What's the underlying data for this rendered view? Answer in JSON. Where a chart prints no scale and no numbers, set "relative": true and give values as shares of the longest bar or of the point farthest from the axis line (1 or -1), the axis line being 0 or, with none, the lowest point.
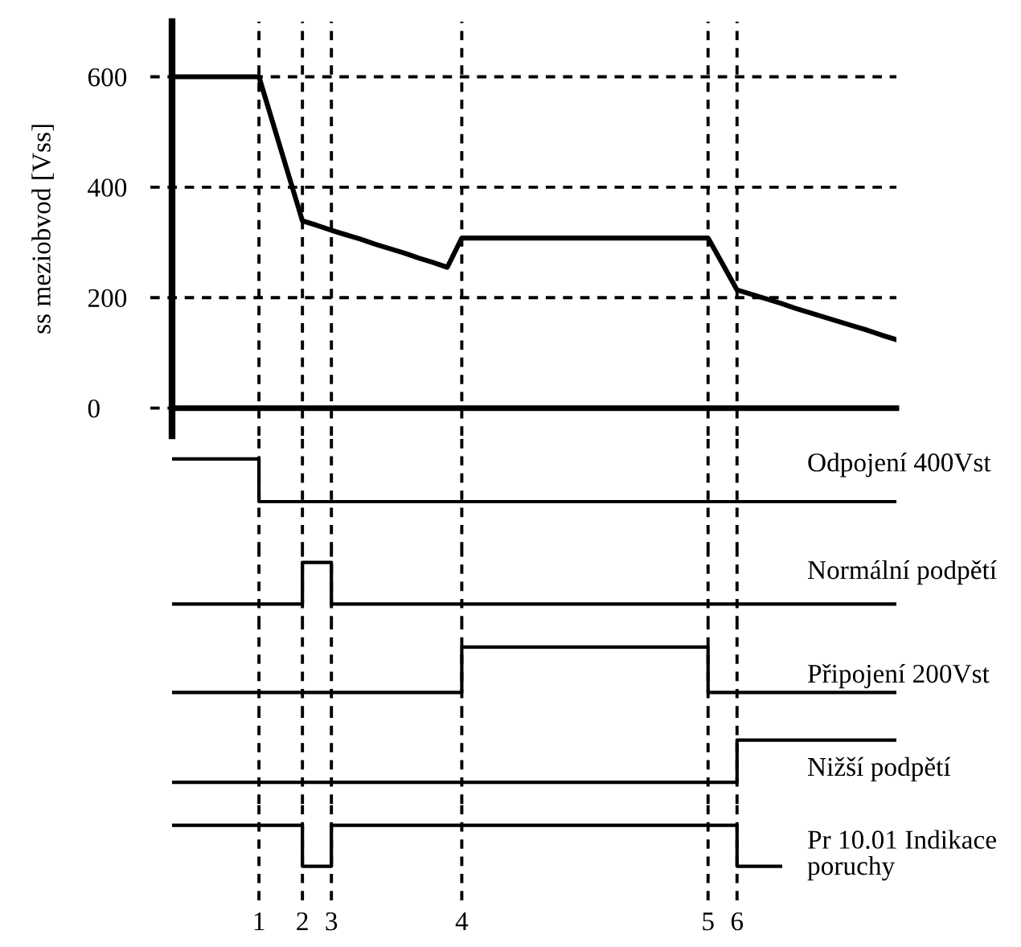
{
  "chart_data": [
    {
      "type": "line",
      "ylabel": "ss meziobvod [Vss]",
      "categories": [
        null,
        null,
        null,
        null,
        null,
        null,
        "1",
        null,
        null,
        "2",
        null,
        "3",
        null,
        null,
        null,
        null,
        null,
        null,
        null,
        null,
        "4",
        null,
        null,
        null,
        null,
        null,
        null,
        null,
        null,
        null,
        null,
        null,
        null,
        null,
        null,
        null,
        null,
        "5",
        null,
        "6",
        null,
        null,
        null,
        null,
        null,
        null,
        null,
        null,
        null,
        null,
        null
      ],
      "series": [
        {
          "color": "#000000",
          "values": [
            600,
            600,
            600,
            600,
            600,
            600,
            600,
            513,
            426,
            339,
            331,
            322,
            314,
            306,
            297,
            289,
            281,
            272,
            264,
            255,
            308,
            308,
            308,
            308,
            308,
            308,
            308,
            308,
            308,
            308,
            308,
            308,
            308,
            308,
            308,
            308,
            308,
            308,
            261,
            214,
            206,
            198,
            190,
            181,
            173,
            165,
            157,
            149,
            141,
            132,
            124
          ]
        }
      ],
      "ylim": [
        -50,
        700
      ],
      "yticks": [
        0,
        200,
        400,
        600
      ],
      "grid": true,
      "tick_labels": "y",
      "line_style": "solid"
    },
    {
      "type": "step",
      "relative": true,
      "grid": "x",
      "tick_labels": false,
      "categories": [
        null,
        null,
        null,
        null,
        null,
        null,
        "1",
        null,
        null,
        "2",
        null,
        "3",
        null,
        null,
        null,
        null,
        null,
        null,
        null,
        null,
        "4",
        null,
        null,
        null,
        null,
        null,
        null,
        null,
        null,
        null,
        null,
        null,
        null,
        null,
        null,
        null,
        null,
        "5",
        null,
        "6",
        null,
        null,
        null,
        null,
        null,
        null,
        null,
        null,
        null,
        null,
        null
      ],
      "series": [
        {
          "name": "Odpojení 400Vst",
          "color": "#000000",
          "values": [
            1,
            1,
            1,
            1,
            1,
            1,
            0,
            0,
            0,
            0,
            0,
            0,
            0,
            0,
            0,
            0,
            0,
            0,
            0,
            0,
            0,
            0,
            0,
            0,
            0,
            0,
            0,
            0,
            0,
            0,
            0,
            0,
            0,
            0,
            0,
            0,
            0,
            0,
            0,
            0,
            0,
            0,
            0,
            0,
            0,
            0,
            0,
            0,
            0,
            0,
            0
          ]
        }
      ]
    },
    {
      "type": "step",
      "relative": true,
      "grid": "x",
      "tick_labels": false,
      "categories": [
        null,
        null,
        null,
        null,
        null,
        null,
        "1",
        null,
        null,
        "2",
        null,
        "3",
        null,
        null,
        null,
        null,
        null,
        null,
        null,
        null,
        "4",
        null,
        null,
        null,
        null,
        null,
        null,
        null,
        null,
        null,
        null,
        null,
        null,
        null,
        null,
        null,
        null,
        "5",
        null,
        "6",
        null,
        null,
        null,
        null,
        null,
        null,
        null,
        null,
        null,
        null,
        null
      ],
      "series": [
        {
          "name": "Normální podpětí",
          "color": "#000000",
          "values": [
            0,
            0,
            0,
            0,
            0,
            0,
            0,
            0,
            0,
            1,
            1,
            0,
            0,
            0,
            0,
            0,
            0,
            0,
            0,
            0,
            0,
            0,
            0,
            0,
            0,
            0,
            0,
            0,
            0,
            0,
            0,
            0,
            0,
            0,
            0,
            0,
            0,
            0,
            0,
            0,
            0,
            0,
            0,
            0,
            0,
            0,
            0,
            0,
            0,
            0,
            0
          ]
        }
      ]
    },
    {
      "type": "step",
      "relative": true,
      "grid": "x",
      "tick_labels": false,
      "categories": [
        null,
        null,
        null,
        null,
        null,
        null,
        "1",
        null,
        null,
        "2",
        null,
        "3",
        null,
        null,
        null,
        null,
        null,
        null,
        null,
        null,
        "4",
        null,
        null,
        null,
        null,
        null,
        null,
        null,
        null,
        null,
        null,
        null,
        null,
        null,
        null,
        null,
        null,
        "5",
        null,
        "6",
        null,
        null,
        null,
        null,
        null,
        null,
        null,
        null,
        null,
        null,
        null
      ],
      "series": [
        {
          "name": "Připojení 200Vst",
          "color": "#000000",
          "values": [
            0,
            0,
            0,
            0,
            0,
            0,
            0,
            0,
            0,
            0,
            0,
            0,
            0,
            0,
            0,
            0,
            0,
            0,
            0,
            0,
            1,
            1,
            1,
            1,
            1,
            1,
            1,
            1,
            1,
            1,
            1,
            1,
            1,
            1,
            1,
            1,
            1,
            0,
            0,
            0,
            0,
            0,
            0,
            0,
            0,
            0,
            0,
            0,
            0,
            0,
            0
          ]
        }
      ]
    },
    {
      "type": "step",
      "relative": true,
      "grid": "x",
      "tick_labels": false,
      "categories": [
        null,
        null,
        null,
        null,
        null,
        null,
        "1",
        null,
        null,
        "2",
        null,
        "3",
        null,
        null,
        null,
        null,
        null,
        null,
        null,
        null,
        "4",
        null,
        null,
        null,
        null,
        null,
        null,
        null,
        null,
        null,
        null,
        null,
        null,
        null,
        null,
        null,
        null,
        "5",
        null,
        "6",
        null,
        null,
        null,
        null,
        null,
        null,
        null,
        null,
        null,
        null,
        null
      ],
      "series": [
        {
          "name": "Nižší podpětí",
          "color": "#000000",
          "values": [
            0,
            0,
            0,
            0,
            0,
            0,
            0,
            0,
            0,
            0,
            0,
            0,
            0,
            0,
            0,
            0,
            0,
            0,
            0,
            0,
            0,
            0,
            0,
            0,
            0,
            0,
            0,
            0,
            0,
            0,
            0,
            0,
            0,
            0,
            0,
            0,
            0,
            0,
            0,
            1,
            1,
            1,
            1,
            1,
            1,
            1,
            1,
            1,
            1,
            1,
            1
          ]
        }
      ]
    },
    {
      "type": "step",
      "relative": true,
      "grid": "x",
      "tick_labels": "x",
      "categories": [
        null,
        null,
        null,
        null,
        null,
        null,
        "1",
        null,
        null,
        "2",
        null,
        "3",
        null,
        null,
        null,
        null,
        null,
        null,
        null,
        null,
        "4",
        null,
        null,
        null,
        null,
        null,
        null,
        null,
        null,
        null,
        null,
        null,
        null,
        null,
        null,
        null,
        null,
        "5",
        null,
        "6",
        null,
        null,
        null,
        null,
        null,
        null,
        null,
        null,
        null,
        null,
        null
      ],
      "series": [
        {
          "name": "Pr 10.01 Indikace\nporuchy",
          "color": "#000000",
          "values": [
            1,
            1,
            1,
            1,
            1,
            1,
            1,
            1,
            1,
            0,
            0,
            1,
            1,
            1,
            1,
            1,
            1,
            1,
            1,
            1,
            1,
            1,
            1,
            1,
            1,
            1,
            1,
            1,
            1,
            1,
            1,
            1,
            1,
            1,
            1,
            1,
            1,
            1,
            1,
            0,
            0,
            0,
            0,
            null,
            null,
            null,
            null,
            null,
            null,
            null,
            null
          ]
        }
      ]
    }
  ]
}
